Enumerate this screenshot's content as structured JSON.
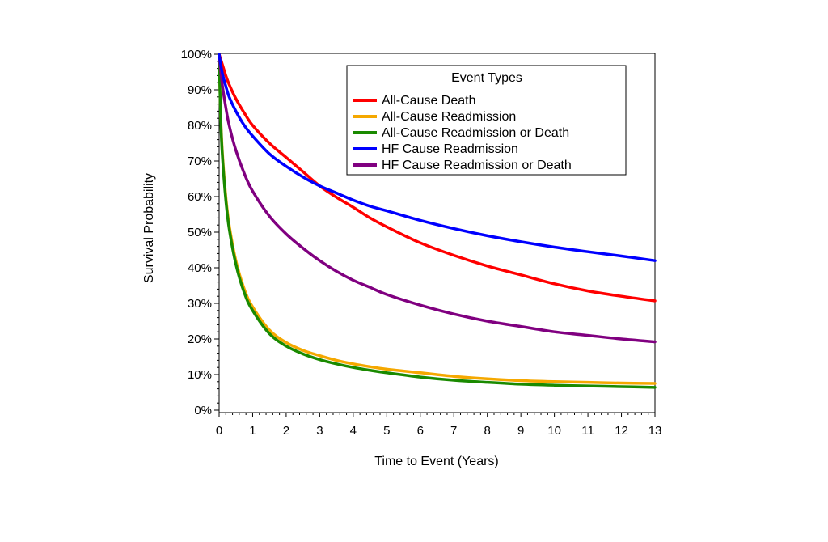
{
  "chart_data": {
    "type": "line",
    "title": "",
    "xlabel": "Time to Event (Years)",
    "ylabel": "Survival Probability",
    "xlim": [
      0,
      13
    ],
    "ylim": [
      0,
      100
    ],
    "x_ticks": [
      0,
      1,
      2,
      3,
      4,
      5,
      6,
      7,
      8,
      9,
      10,
      11,
      12,
      13
    ],
    "y_ticks": [
      0,
      10,
      20,
      30,
      40,
      50,
      60,
      70,
      80,
      90,
      100
    ],
    "y_tick_labels": [
      "0%",
      "10%",
      "20%",
      "30%",
      "40%",
      "50%",
      "60%",
      "70%",
      "80%",
      "90%",
      "100%"
    ],
    "grid": false,
    "legend": {
      "title": "Event Types",
      "placement": "top-right"
    },
    "x": [
      0,
      0.05,
      0.1,
      0.2,
      0.3,
      0.5,
      0.75,
      1,
      1.5,
      2,
      2.5,
      3,
      3.5,
      4,
      4.5,
      5,
      6,
      7,
      8,
      9,
      10,
      11,
      12,
      13
    ],
    "series": [
      {
        "name": "All-Cause Death",
        "color": "#ff0000",
        "values": [
          100,
          98.5,
          97,
          94,
          91.5,
          87.5,
          83.5,
          80,
          75,
          71,
          67,
          63,
          59.8,
          57,
          54,
          51.5,
          47,
          43.5,
          40.5,
          38,
          35.5,
          33.5,
          32,
          30.7
        ]
      },
      {
        "name": "All-Cause Readmission",
        "color": "#f5a800",
        "values": [
          100,
          82,
          72,
          60,
          52,
          42,
          34,
          29,
          22.5,
          19,
          16.8,
          15.3,
          14,
          13,
          12.2,
          11.5,
          10.5,
          9.5,
          8.8,
          8.3,
          8,
          7.8,
          7.6,
          7.5
        ]
      },
      {
        "name": "All-Cause Readmission or Death",
        "color": "#1a8a00",
        "values": [
          100,
          81,
          71,
          59,
          51,
          41,
          33,
          28,
          21.5,
          18,
          15.8,
          14.2,
          13,
          12,
          11.2,
          10.5,
          9.3,
          8.4,
          7.8,
          7.3,
          7,
          6.8,
          6.6,
          6.4
        ]
      },
      {
        "name": "HF Cause Readmission",
        "color": "#0000ff",
        "values": [
          100,
          97,
          94.5,
          91,
          88,
          84,
          80,
          77,
          72,
          68.5,
          65.5,
          63,
          61,
          59,
          57.3,
          56,
          53.3,
          51,
          49,
          47.3,
          45.8,
          44.5,
          43.3,
          42
        ]
      },
      {
        "name": "HF Cause Readmission or Death",
        "color": "#800080",
        "values": [
          100,
          95,
          91,
          85,
          80,
          73,
          66.5,
          61.5,
          54.5,
          49.5,
          45.5,
          42,
          39,
          36.5,
          34.5,
          32.5,
          29.5,
          27,
          25,
          23.5,
          22,
          21,
          20,
          19.2
        ]
      }
    ]
  }
}
